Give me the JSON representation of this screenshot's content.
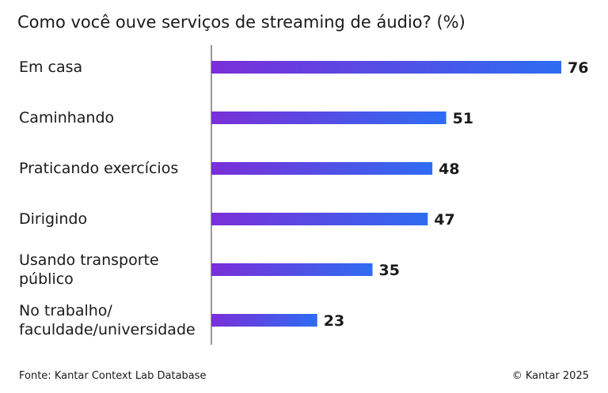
{
  "chart_data": {
    "type": "bar",
    "orientation": "horizontal",
    "title": "Como você ouve serviços de streaming de áudio? (%)",
    "categories": [
      "Em casa",
      "Caminhando",
      "Praticando exercícios",
      "Dirigindo",
      "Usando transporte\npúblico",
      "No trabalho/\nfaculdade/universidade"
    ],
    "values": [
      76,
      51,
      48,
      47,
      35,
      23
    ],
    "colors": [
      "#7a2fd8",
      "#2e6cf2"
    ],
    "source": "Fonte: Kantar Context Lab Database",
    "copyright": "© Kantar 2025"
  }
}
